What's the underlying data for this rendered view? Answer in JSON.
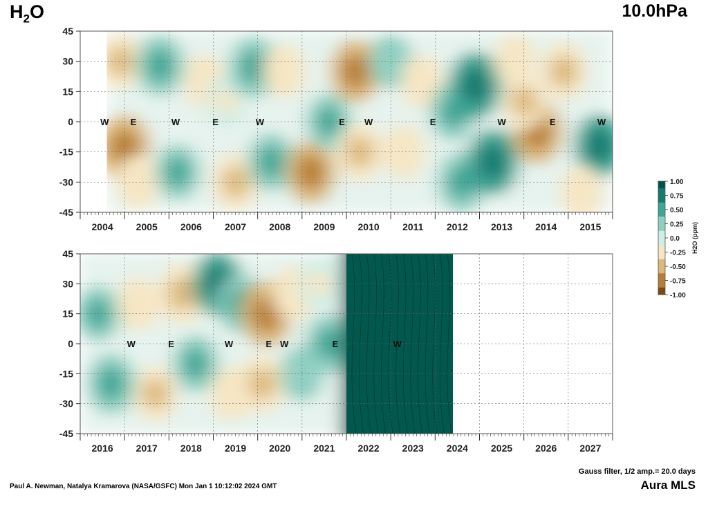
{
  "header": {
    "species": "H",
    "species_sub": "2",
    "species_suffix": "O",
    "level": "10.0hPa"
  },
  "footer": {
    "credit": "Paul A. Newman, Natalya Kramarova (NASA/GSFC) Mon Jan  1 10:12:02 2024 GMT",
    "filter": "Gauss filter, 1/2 amp.= 20.0 days",
    "instrument": "Aura MLS"
  },
  "colorbar": {
    "label": "H2O (ppm)",
    "ticks": [
      "1.00",
      "0.75",
      "0.50",
      "0.25",
      "0.0",
      "-0.25",
      "-0.50",
      "-0.75",
      "-1.00"
    ],
    "colors": [
      "#00524a",
      "#147a6f",
      "#3fa595",
      "#8fcfc2",
      "#cfeee7",
      "#f6e6c4",
      "#dcb87b",
      "#b87e35",
      "#7a4a0e"
    ]
  },
  "chart_data": [
    {
      "type": "heatmap",
      "panel": "top",
      "x_range": [
        2004.0,
        2016.0
      ],
      "x_tick_labels": [
        "2004",
        "2005",
        "2006",
        "2007",
        "2008",
        "2009",
        "2010",
        "2011",
        "2012",
        "2013",
        "2014",
        "2015"
      ],
      "y_range": [
        -45,
        45
      ],
      "y_tick_labels": [
        "45",
        "30",
        "15",
        "0",
        "-15",
        "-30",
        "-45"
      ],
      "data_start": 2004.6,
      "data_end": 2016.0,
      "qbo_labels": [
        {
          "t": 2004.55,
          "text": "W"
        },
        {
          "t": 2005.2,
          "text": "E"
        },
        {
          "t": 2006.15,
          "text": "W"
        },
        {
          "t": 2007.05,
          "text": "E"
        },
        {
          "t": 2008.05,
          "text": "W"
        },
        {
          "t": 2009.9,
          "text": "E"
        },
        {
          "t": 2010.5,
          "text": "W"
        },
        {
          "t": 2011.95,
          "text": "E"
        },
        {
          "t": 2013.5,
          "text": "W"
        },
        {
          "t": 2014.65,
          "text": "E"
        },
        {
          "t": 2015.75,
          "text": "W"
        }
      ],
      "anomalies": [
        {
          "t": 2005.0,
          "lat": -13,
          "v": -0.8
        },
        {
          "t": 2005.3,
          "lat": -30,
          "v": -0.3
        },
        {
          "t": 2004.9,
          "lat": 30,
          "v": -0.4
        },
        {
          "t": 2004.3,
          "lat": -20,
          "v": 0.3
        },
        {
          "t": 2005.8,
          "lat": 28,
          "v": 0.6
        },
        {
          "t": 2006.2,
          "lat": -25,
          "v": 0.4
        },
        {
          "t": 2006.8,
          "lat": 20,
          "v": -0.3
        },
        {
          "t": 2007.5,
          "lat": -30,
          "v": -0.5
        },
        {
          "t": 2007.3,
          "lat": 10,
          "v": -0.2
        },
        {
          "t": 2007.9,
          "lat": 27,
          "v": 0.6
        },
        {
          "t": 2008.3,
          "lat": -20,
          "v": 0.5
        },
        {
          "t": 2008.6,
          "lat": 25,
          "v": -0.3
        },
        {
          "t": 2009.2,
          "lat": -25,
          "v": -0.7
        },
        {
          "t": 2009.6,
          "lat": 0,
          "v": 0.4
        },
        {
          "t": 2010.2,
          "lat": 25,
          "v": -0.7
        },
        {
          "t": 2010.3,
          "lat": -15,
          "v": -0.5
        },
        {
          "t": 2011.0,
          "lat": 30,
          "v": 0.3
        },
        {
          "t": 2011.3,
          "lat": -15,
          "v": -0.3
        },
        {
          "t": 2011.7,
          "lat": 20,
          "v": -0.3
        },
        {
          "t": 2012.4,
          "lat": 5,
          "v": 0.5
        },
        {
          "t": 2012.9,
          "lat": 18,
          "v": 0.85
        },
        {
          "t": 2012.6,
          "lat": -30,
          "v": 0.6
        },
        {
          "t": 2013.3,
          "lat": -20,
          "v": 0.8
        },
        {
          "t": 2013.8,
          "lat": 30,
          "v": -0.3
        },
        {
          "t": 2014.3,
          "lat": -5,
          "v": -0.75
        },
        {
          "t": 2014.0,
          "lat": 10,
          "v": -0.4
        },
        {
          "t": 2014.9,
          "lat": 25,
          "v": -0.5
        },
        {
          "t": 2015.7,
          "lat": -12,
          "v": 0.7
        },
        {
          "t": 2015.3,
          "lat": -35,
          "v": -0.3
        }
      ]
    },
    {
      "type": "heatmap",
      "panel": "bottom",
      "x_range": [
        2016.0,
        2028.0
      ],
      "x_tick_labels": [
        "2016",
        "2017",
        "2018",
        "2019",
        "2020",
        "2021",
        "2022",
        "2023",
        "2024",
        "2025",
        "2026",
        "2027"
      ],
      "y_range": [
        -45,
        45
      ],
      "y_tick_labels": [
        "45",
        "30",
        "15",
        "0",
        "-15",
        "-30",
        "-45"
      ],
      "data_start": 2016.0,
      "data_end": 2024.4,
      "qbo_labels": [
        {
          "t": 2017.15,
          "text": "W"
        },
        {
          "t": 2018.05,
          "text": "E"
        },
        {
          "t": 2019.35,
          "text": "W"
        },
        {
          "t": 2020.25,
          "text": "E"
        },
        {
          "t": 2020.6,
          "text": "W"
        },
        {
          "t": 2021.75,
          "text": "E"
        },
        {
          "t": 2023.15,
          "text": "W"
        }
      ],
      "anomalies": [
        {
          "t": 2016.4,
          "lat": 15,
          "v": 0.4
        },
        {
          "t": 2016.7,
          "lat": -20,
          "v": 0.6
        },
        {
          "t": 2017.3,
          "lat": 20,
          "v": -0.3
        },
        {
          "t": 2017.7,
          "lat": -25,
          "v": -0.4
        },
        {
          "t": 2018.3,
          "lat": 25,
          "v": -0.6
        },
        {
          "t": 2018.6,
          "lat": -10,
          "v": 0.45
        },
        {
          "t": 2019.1,
          "lat": 30,
          "v": 0.7
        },
        {
          "t": 2019.6,
          "lat": 20,
          "v": 0.5
        },
        {
          "t": 2019.4,
          "lat": -25,
          "v": -0.3
        },
        {
          "t": 2020.2,
          "lat": 15,
          "v": -0.8
        },
        {
          "t": 2020.1,
          "lat": -20,
          "v": -0.5
        },
        {
          "t": 2020.8,
          "lat": 25,
          "v": -0.3
        },
        {
          "t": 2021.0,
          "lat": -15,
          "v": 0.35
        },
        {
          "t": 2021.6,
          "lat": 0,
          "v": 0.5
        },
        {
          "t": 2021.4,
          "lat": 30,
          "v": -0.2
        }
      ],
      "strong_region": {
        "t_start": 2022.0,
        "t_end": 2024.4,
        "v": 1.0
      }
    }
  ]
}
